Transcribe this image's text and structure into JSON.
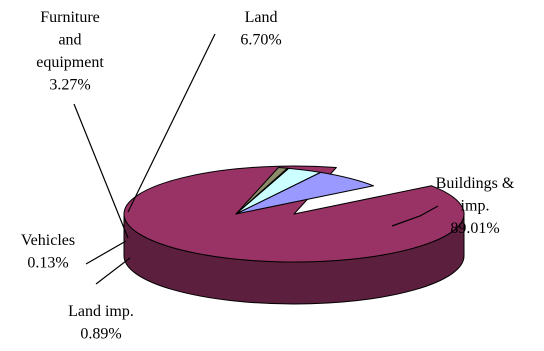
{
  "chart_data": {
    "type": "pie",
    "style": "3d-exploded",
    "title": "",
    "slices": [
      {
        "name": "Buildings & imp.",
        "value": 89.01,
        "label_lines": [
          "Buildings &",
          "imp.",
          "89.01%"
        ],
        "color": "#993366",
        "side_color": "#5c1f3d"
      },
      {
        "name": "Land imp.",
        "value": 0.89,
        "label_lines": [
          "Land imp.",
          "0.89%"
        ],
        "color": "#8c8c6a",
        "side_color": "#4d4d3a"
      },
      {
        "name": "Vehicles",
        "value": 0.13,
        "label_lines": [
          "Vehicles",
          "0.13%"
        ],
        "color": "#333333",
        "side_color": "#1a1a1a"
      },
      {
        "name": "Furniture and equipment",
        "value": 3.27,
        "label_lines": [
          "Furniture",
          "and",
          "equipment",
          "3.27%"
        ],
        "color": "#ccffff",
        "side_color": "#7fb3b3"
      },
      {
        "name": "Land",
        "value": 6.7,
        "label_lines": [
          "Land",
          "6.70%"
        ],
        "color": "#9999ff",
        "side_color": "#5c5cb3"
      }
    ]
  }
}
